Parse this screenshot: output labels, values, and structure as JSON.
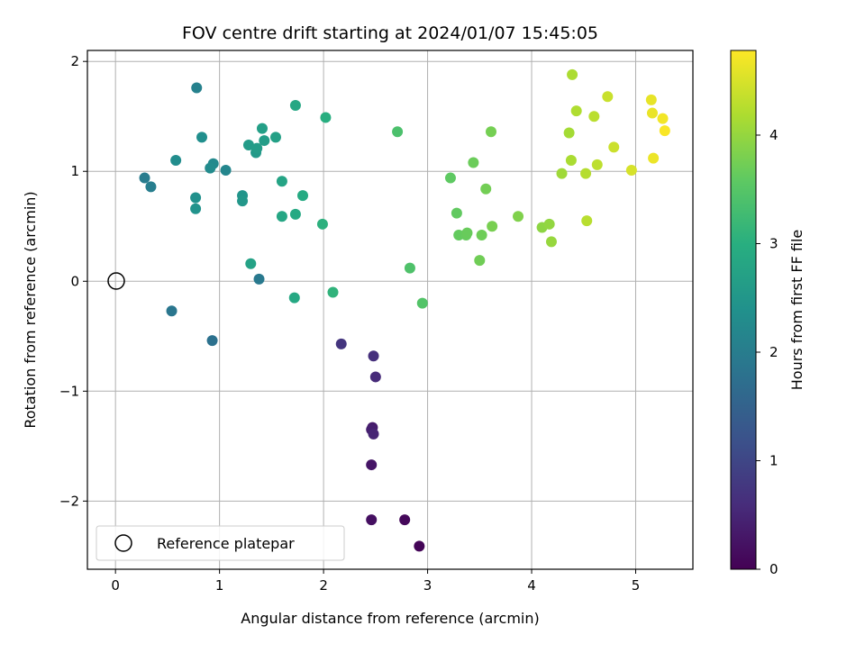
{
  "chart_data": {
    "type": "scatter",
    "title": "FOV centre drift starting at 2024/01/07 15:45:05",
    "xlabel": "Angular distance from reference (arcmin)",
    "ylabel": "Rotation from reference (arcmin)",
    "xlim": [
      -0.27,
      5.55
    ],
    "ylim": [
      -2.62,
      2.1
    ],
    "xticks": [
      0,
      1,
      2,
      3,
      4,
      5
    ],
    "xtick_labels": [
      "0",
      "1",
      "2",
      "3",
      "4",
      "5"
    ],
    "yticks": [
      -2,
      -1,
      0,
      1,
      2
    ],
    "ytick_labels": [
      "−2",
      "−1",
      "0",
      "1",
      "2"
    ],
    "grid": true,
    "colormap": "viridis",
    "colorbar": {
      "label": "Hours from first FF file",
      "range": [
        0,
        4.78
      ],
      "ticks": [
        0,
        1,
        2,
        3,
        4
      ],
      "tick_labels": [
        "0",
        "1",
        "2",
        "3",
        "4"
      ]
    },
    "legend": {
      "position": "bottom-left",
      "label": "Reference platepar"
    },
    "reference_point": {
      "x": 0,
      "y": 0
    },
    "points": [
      {
        "x": 2.92,
        "y": -2.41,
        "h": 0.05
      },
      {
        "x": 2.78,
        "y": -2.17,
        "h": 0.1
      },
      {
        "x": 2.46,
        "y": -2.17,
        "h": 0.2
      },
      {
        "x": 2.46,
        "y": -1.67,
        "h": 0.28
      },
      {
        "x": 2.47,
        "y": -1.33,
        "h": 0.36
      },
      {
        "x": 2.46,
        "y": -1.35,
        "h": 0.42
      },
      {
        "x": 2.48,
        "y": -1.39,
        "h": 0.5
      },
      {
        "x": 2.5,
        "y": -0.87,
        "h": 0.58
      },
      {
        "x": 2.48,
        "y": -0.68,
        "h": 0.66
      },
      {
        "x": 2.17,
        "y": -0.57,
        "h": 0.74
      },
      {
        "x": 0.93,
        "y": -0.54,
        "h": 1.8
      },
      {
        "x": 0.54,
        "y": -0.27,
        "h": 1.88
      },
      {
        "x": 1.38,
        "y": 0.02,
        "h": 1.94
      },
      {
        "x": 0.28,
        "y": 0.94,
        "h": 2.0
      },
      {
        "x": 0.34,
        "y": 0.86,
        "h": 2.05
      },
      {
        "x": 0.78,
        "y": 1.76,
        "h": 2.1
      },
      {
        "x": 1.06,
        "y": 1.01,
        "h": 2.2
      },
      {
        "x": 0.94,
        "y": 1.07,
        "h": 2.26
      },
      {
        "x": 0.91,
        "y": 1.03,
        "h": 2.3
      },
      {
        "x": 0.58,
        "y": 1.1,
        "h": 2.34
      },
      {
        "x": 0.83,
        "y": 1.31,
        "h": 2.38
      },
      {
        "x": 0.77,
        "y": 0.76,
        "h": 2.42
      },
      {
        "x": 0.77,
        "y": 0.66,
        "h": 2.46
      },
      {
        "x": 1.22,
        "y": 0.78,
        "h": 2.5
      },
      {
        "x": 1.22,
        "y": 0.73,
        "h": 2.54
      },
      {
        "x": 1.35,
        "y": 1.17,
        "h": 2.58
      },
      {
        "x": 1.28,
        "y": 1.24,
        "h": 2.62
      },
      {
        "x": 1.36,
        "y": 1.21,
        "h": 2.64
      },
      {
        "x": 1.43,
        "y": 1.28,
        "h": 2.66
      },
      {
        "x": 1.41,
        "y": 1.39,
        "h": 2.7
      },
      {
        "x": 1.54,
        "y": 1.31,
        "h": 2.72
      },
      {
        "x": 1.3,
        "y": 0.16,
        "h": 2.76
      },
      {
        "x": 1.6,
        "y": 0.91,
        "h": 2.8
      },
      {
        "x": 1.6,
        "y": 0.59,
        "h": 2.84
      },
      {
        "x": 1.73,
        "y": 1.6,
        "h": 2.86
      },
      {
        "x": 1.72,
        "y": -0.15,
        "h": 2.88
      },
      {
        "x": 1.73,
        "y": 0.61,
        "h": 2.9
      },
      {
        "x": 1.8,
        "y": 0.78,
        "h": 2.92
      },
      {
        "x": 2.02,
        "y": 1.49,
        "h": 3.0
      },
      {
        "x": 1.99,
        "y": 0.52,
        "h": 3.05
      },
      {
        "x": 2.09,
        "y": -0.1,
        "h": 3.1
      },
      {
        "x": 2.71,
        "y": 1.36,
        "h": 3.4
      },
      {
        "x": 2.83,
        "y": 0.12,
        "h": 3.44
      },
      {
        "x": 2.95,
        "y": -0.2,
        "h": 3.48
      },
      {
        "x": 3.22,
        "y": 0.94,
        "h": 3.6
      },
      {
        "x": 3.28,
        "y": 0.62,
        "h": 3.62
      },
      {
        "x": 3.3,
        "y": 0.42,
        "h": 3.64
      },
      {
        "x": 3.37,
        "y": 0.42,
        "h": 3.66
      },
      {
        "x": 3.38,
        "y": 0.44,
        "h": 3.68
      },
      {
        "x": 3.44,
        "y": 1.08,
        "h": 3.7
      },
      {
        "x": 3.52,
        "y": 0.42,
        "h": 3.72
      },
      {
        "x": 3.5,
        "y": 0.19,
        "h": 3.74
      },
      {
        "x": 3.56,
        "y": 0.84,
        "h": 3.76
      },
      {
        "x": 3.61,
        "y": 1.36,
        "h": 3.78
      },
      {
        "x": 3.62,
        "y": 0.5,
        "h": 3.8
      },
      {
        "x": 3.87,
        "y": 0.59,
        "h": 3.86
      },
      {
        "x": 4.1,
        "y": 0.49,
        "h": 3.96
      },
      {
        "x": 4.17,
        "y": 0.52,
        "h": 4.0
      },
      {
        "x": 4.19,
        "y": 0.36,
        "h": 4.04
      },
      {
        "x": 4.29,
        "y": 0.98,
        "h": 4.1
      },
      {
        "x": 4.36,
        "y": 1.35,
        "h": 4.14
      },
      {
        "x": 4.38,
        "y": 1.1,
        "h": 4.18
      },
      {
        "x": 4.39,
        "y": 1.88,
        "h": 4.2
      },
      {
        "x": 4.43,
        "y": 1.55,
        "h": 4.22
      },
      {
        "x": 4.52,
        "y": 0.98,
        "h": 4.26
      },
      {
        "x": 4.53,
        "y": 0.55,
        "h": 4.28
      },
      {
        "x": 4.6,
        "y": 1.5,
        "h": 4.3
      },
      {
        "x": 4.63,
        "y": 1.06,
        "h": 4.32
      },
      {
        "x": 4.73,
        "y": 1.68,
        "h": 4.4
      },
      {
        "x": 4.79,
        "y": 1.22,
        "h": 4.42
      },
      {
        "x": 4.96,
        "y": 1.01,
        "h": 4.5
      },
      {
        "x": 5.15,
        "y": 1.65,
        "h": 4.62
      },
      {
        "x": 5.16,
        "y": 1.53,
        "h": 4.64
      },
      {
        "x": 5.17,
        "y": 1.12,
        "h": 4.66
      },
      {
        "x": 5.26,
        "y": 1.48,
        "h": 4.7
      },
      {
        "x": 5.28,
        "y": 1.37,
        "h": 4.75
      }
    ]
  }
}
